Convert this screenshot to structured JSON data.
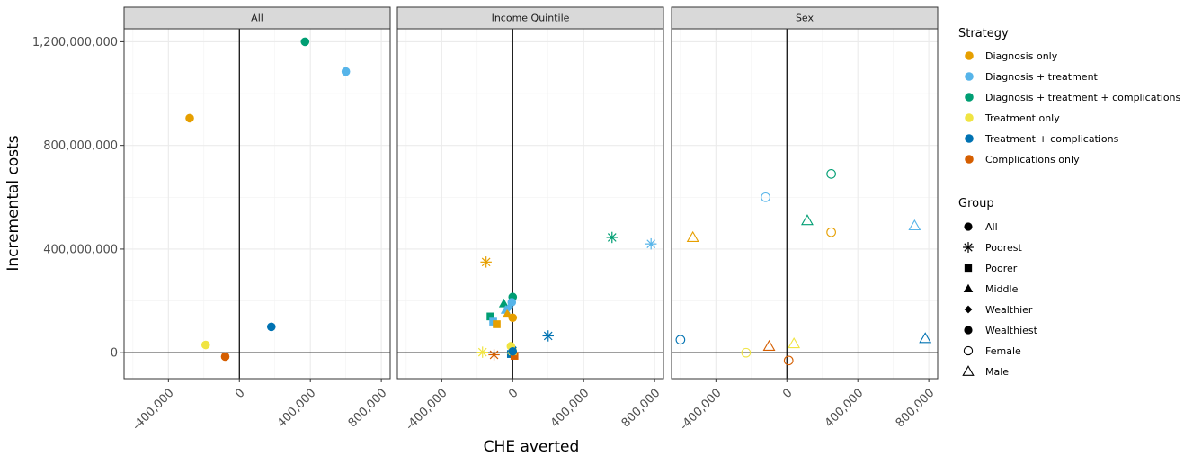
{
  "chart_data": {
    "type": "scatter",
    "xlabel": "CHE averted",
    "ylabel": "Incremental costs",
    "xlim": [
      -650000,
      850000
    ],
    "ylim": [
      -100000000,
      1250000000
    ],
    "x_ticks": [
      -400000,
      0,
      400000,
      800000
    ],
    "x_tick_labels": [
      "-400,000",
      "0",
      "400,000",
      "800,000"
    ],
    "y_ticks": [
      0,
      400000000,
      800000000,
      1200000000
    ],
    "y_tick_labels": [
      "0",
      "400,000,000",
      "800,000,000",
      "1,200,000,000"
    ],
    "grid": true,
    "facets": [
      "All",
      "Income Quintile",
      "Sex"
    ],
    "legend_placement": "right",
    "strategy_legend": {
      "title": "Strategy",
      "items": [
        {
          "label": "Diagnosis only",
          "color": "#E69F00"
        },
        {
          "label": "Diagnosis + treatment",
          "color": "#56B4E9"
        },
        {
          "label": "Diagnosis + treatment + complications",
          "color": "#009E73"
        },
        {
          "label": "Treatment only",
          "color": "#F0E442"
        },
        {
          "label": "Treatment + complications",
          "color": "#0072B2"
        },
        {
          "label": "Complications only",
          "color": "#D55E00"
        }
      ]
    },
    "group_legend": {
      "title": "Group",
      "items": [
        {
          "label": "All",
          "shape": "dot"
        },
        {
          "label": "Poorest",
          "shape": "asterisk"
        },
        {
          "label": "Poorer",
          "shape": "square"
        },
        {
          "label": "Middle",
          "shape": "triangle"
        },
        {
          "label": "Wealthier",
          "shape": "diamond"
        },
        {
          "label": "Wealthiest",
          "shape": "dot"
        },
        {
          "label": "Female",
          "shape": "circle-open"
        },
        {
          "label": "Male",
          "shape": "triangle-open"
        }
      ]
    },
    "points": [
      {
        "facet": 0,
        "strategy": 0,
        "group": 0,
        "x": -280000,
        "y": 905000000
      },
      {
        "facet": 0,
        "strategy": 1,
        "group": 0,
        "x": 600000,
        "y": 1085000000
      },
      {
        "facet": 0,
        "strategy": 2,
        "group": 0,
        "x": 370000,
        "y": 1200000000
      },
      {
        "facet": 0,
        "strategy": 3,
        "group": 0,
        "x": -190000,
        "y": 30000000
      },
      {
        "facet": 0,
        "strategy": 4,
        "group": 0,
        "x": 180000,
        "y": 100000000
      },
      {
        "facet": 0,
        "strategy": 5,
        "group": 0,
        "x": -80000,
        "y": -15000000
      },
      {
        "facet": 1,
        "strategy": 0,
        "group": 1,
        "x": -150000,
        "y": 350000000
      },
      {
        "facet": 1,
        "strategy": 2,
        "group": 1,
        "x": 560000,
        "y": 445000000
      },
      {
        "facet": 1,
        "strategy": 1,
        "group": 1,
        "x": 780000,
        "y": 420000000
      },
      {
        "facet": 1,
        "strategy": 4,
        "group": 1,
        "x": 200000,
        "y": 65000000
      },
      {
        "facet": 1,
        "strategy": 3,
        "group": 1,
        "x": -170000,
        "y": 2000000
      },
      {
        "facet": 1,
        "strategy": 5,
        "group": 1,
        "x": -105000,
        "y": -8000000
      },
      {
        "facet": 1,
        "strategy": 2,
        "group": 2,
        "x": -125000,
        "y": 140000000
      },
      {
        "facet": 1,
        "strategy": 1,
        "group": 2,
        "x": -110000,
        "y": 120000000
      },
      {
        "facet": 1,
        "strategy": 0,
        "group": 2,
        "x": -90000,
        "y": 110000000
      },
      {
        "facet": 1,
        "strategy": 4,
        "group": 2,
        "x": -10000,
        "y": -5000000
      },
      {
        "facet": 1,
        "strategy": 5,
        "group": 2,
        "x": 10000,
        "y": -12000000
      },
      {
        "facet": 1,
        "strategy": 3,
        "group": 2,
        "x": 0,
        "y": 5000000
      },
      {
        "facet": 1,
        "strategy": 2,
        "group": 3,
        "x": -50000,
        "y": 190000000
      },
      {
        "facet": 1,
        "strategy": 1,
        "group": 3,
        "x": -40000,
        "y": 165000000
      },
      {
        "facet": 1,
        "strategy": 0,
        "group": 3,
        "x": -30000,
        "y": 150000000
      },
      {
        "facet": 1,
        "strategy": 3,
        "group": 3,
        "x": -5000,
        "y": 10000000
      },
      {
        "facet": 1,
        "strategy": 1,
        "group": 4,
        "x": -20000,
        "y": 175000000
      },
      {
        "facet": 1,
        "strategy": 4,
        "group": 4,
        "x": 0,
        "y": 20000000
      },
      {
        "facet": 1,
        "strategy": 2,
        "group": 5,
        "x": 0,
        "y": 215000000
      },
      {
        "facet": 1,
        "strategy": 1,
        "group": 5,
        "x": -5000,
        "y": 195000000
      },
      {
        "facet": 1,
        "strategy": 0,
        "group": 5,
        "x": 0,
        "y": 135000000
      },
      {
        "facet": 1,
        "strategy": 3,
        "group": 5,
        "x": -10000,
        "y": 25000000
      },
      {
        "facet": 1,
        "strategy": 4,
        "group": 5,
        "x": 0,
        "y": 5000000
      },
      {
        "facet": 2,
        "strategy": 2,
        "group": 6,
        "x": 250000,
        "y": 690000000
      },
      {
        "facet": 2,
        "strategy": 1,
        "group": 6,
        "x": -120000,
        "y": 600000000
      },
      {
        "facet": 2,
        "strategy": 0,
        "group": 6,
        "x": 250000,
        "y": 465000000
      },
      {
        "facet": 2,
        "strategy": 4,
        "group": 6,
        "x": -600000,
        "y": 50000000
      },
      {
        "facet": 2,
        "strategy": 3,
        "group": 6,
        "x": -230000,
        "y": 0
      },
      {
        "facet": 2,
        "strategy": 5,
        "group": 6,
        "x": 10000,
        "y": -30000000
      },
      {
        "facet": 2,
        "strategy": 2,
        "group": 7,
        "x": 115000,
        "y": 510000000
      },
      {
        "facet": 2,
        "strategy": 1,
        "group": 7,
        "x": 720000,
        "y": 490000000
      },
      {
        "facet": 2,
        "strategy": 0,
        "group": 7,
        "x": -530000,
        "y": 445000000
      },
      {
        "facet": 2,
        "strategy": 4,
        "group": 7,
        "x": 780000,
        "y": 55000000
      },
      {
        "facet": 2,
        "strategy": 5,
        "group": 7,
        "x": -100000,
        "y": 25000000
      },
      {
        "facet": 2,
        "strategy": 3,
        "group": 7,
        "x": 40000,
        "y": 35000000
      }
    ]
  }
}
